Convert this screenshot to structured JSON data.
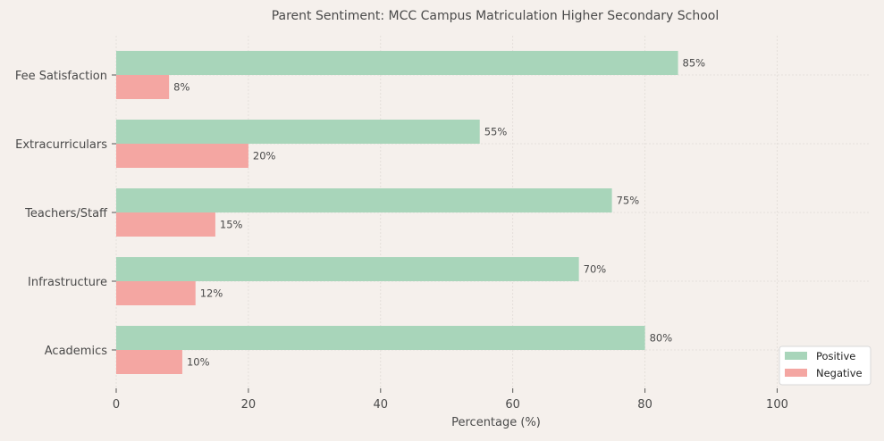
{
  "chart_data": {
    "type": "bar",
    "orientation": "horizontal",
    "title": "Parent Sentiment: MCC Campus Matriculation Higher Secondary School",
    "xlabel": "Percentage (%)",
    "ylabel": "",
    "xlim": [
      0,
      114
    ],
    "xticks": [
      "0",
      "20",
      "40",
      "60",
      "80",
      "100"
    ],
    "grid": true,
    "legend_position": "bottom-right",
    "categories": [
      "Fee Satisfaction",
      "Extracurriculars",
      "Teachers/Staff",
      "Infrastructure",
      "Academics"
    ],
    "series": [
      {
        "name": "Positive",
        "color": "#a8d5ba",
        "values": [
          85,
          55,
          75,
          70,
          80
        ],
        "labels": [
          "85%",
          "55%",
          "75%",
          "70%",
          "80%"
        ]
      },
      {
        "name": "Negative",
        "color": "#f4a6a2",
        "values": [
          8,
          20,
          15,
          12,
          10
        ],
        "labels": [
          "8%",
          "20%",
          "15%",
          "12%",
          "10%"
        ]
      }
    ]
  }
}
